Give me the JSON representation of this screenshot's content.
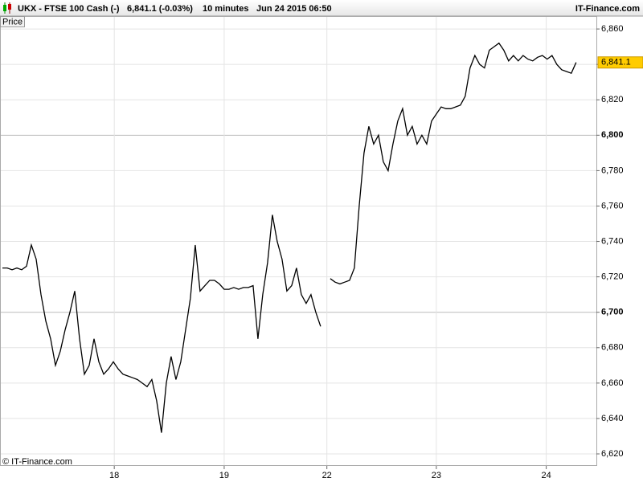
{
  "header": {
    "symbol": "UKX - FTSE 100 Cash (-)",
    "price": "6,841.1 (-0.03%)",
    "interval": "10 minutes",
    "datetime": "Jun 24 2015 06:50",
    "brand": "IT-Finance.com"
  },
  "panel_label": "Price",
  "copyright": "© IT-Finance.com",
  "chart_data": {
    "type": "line",
    "series": [
      {
        "name": "Price",
        "color": "#000000",
        "last_label": "6,841.1",
        "values": [
          6725,
          6725,
          6724,
          6725,
          6724,
          6726,
          6738,
          6730,
          6710,
          6695,
          6685,
          6670,
          6678,
          6690,
          6700,
          6712,
          6685,
          6665,
          6670,
          6685,
          6672,
          6665,
          6668,
          6672,
          6668,
          6665,
          6664,
          6663,
          6662,
          6660,
          6658,
          6662,
          6650,
          6632,
          6660,
          6675,
          6662,
          6672,
          6690,
          6708,
          6738,
          6712,
          6715,
          6718,
          6718,
          6716,
          6713,
          6713,
          6714,
          6713,
          6714,
          6714,
          6715,
          6685,
          6710,
          6728,
          6755,
          6740,
          6730,
          6712,
          6715,
          6725,
          6710,
          6705,
          6710,
          6700,
          6692,
          null,
          6719,
          6717,
          6716,
          6717,
          6718,
          6725,
          6760,
          6790,
          6805,
          6795,
          6800,
          6785,
          6780,
          6795,
          6808,
          6815,
          6800,
          6805,
          6795,
          6800,
          6795,
          6808,
          6812,
          6816,
          6815,
          6815,
          6816,
          6817,
          6822,
          6838,
          6845,
          6840,
          6838,
          6848,
          6850,
          6852,
          6848,
          6842,
          6845,
          6842,
          6845,
          6843,
          6842,
          6844,
          6845,
          6843,
          6845,
          6840,
          6837,
          6836,
          6835,
          6841.1
        ]
      }
    ],
    "xlim": [
      -0.5,
      123.2
    ],
    "xticks": [
      {
        "value": 23.2,
        "label": "18"
      },
      {
        "value": 46,
        "label": "19"
      },
      {
        "value": 67.3,
        "label": "22"
      },
      {
        "value": 90,
        "label": "23"
      },
      {
        "value": 112.8,
        "label": "24"
      }
    ],
    "ylim": [
      6613.2,
      6867.3
    ],
    "yticks": [
      {
        "value": 6620,
        "label": "6,620"
      },
      {
        "value": 6640,
        "label": "6,640"
      },
      {
        "value": 6660,
        "label": "6,660"
      },
      {
        "value": 6680,
        "label": "6,680"
      },
      {
        "value": 6700,
        "label": "6,700"
      },
      {
        "value": 6720,
        "label": "6,720"
      },
      {
        "value": 6740,
        "label": "6,740"
      },
      {
        "value": 6760,
        "label": "6,760"
      },
      {
        "value": 6780,
        "label": "6,780"
      },
      {
        "value": 6800,
        "label": "6,800"
      },
      {
        "value": 6820,
        "label": "6,820"
      },
      {
        "value": 6840,
        "label": "6,840"
      },
      {
        "value": 6860,
        "label": "6,860"
      }
    ],
    "major_every": 100,
    "grid": true
  }
}
